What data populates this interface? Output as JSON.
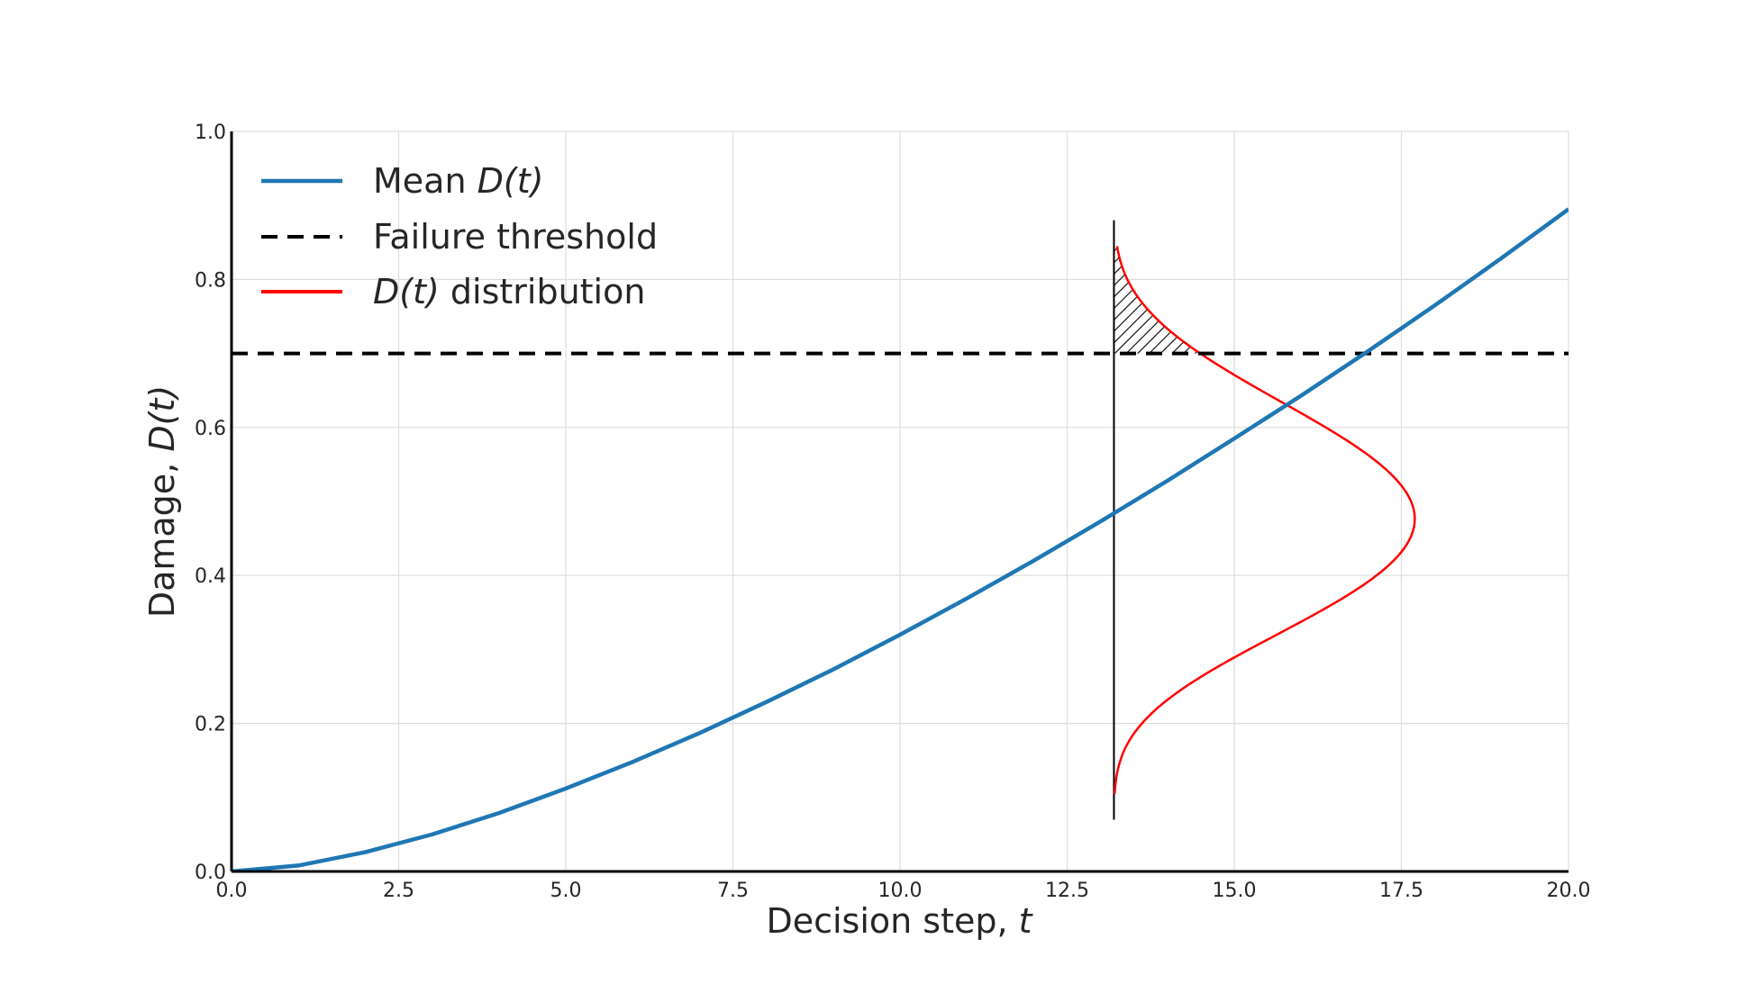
{
  "chart_data": {
    "type": "line",
    "xlabel": {
      "text": "Decision step, ",
      "var": "t"
    },
    "ylabel": {
      "text": "Damage, ",
      "var": "D(t)"
    },
    "xlim": [
      0,
      20
    ],
    "ylim": [
      0,
      1
    ],
    "xticks": [
      0,
      2.5,
      5,
      7.5,
      10,
      12.5,
      15,
      17.5,
      20
    ],
    "xtick_labels": [
      "0.0",
      "2.5",
      "5.0",
      "7.5",
      "10.0",
      "12.5",
      "15.0",
      "17.5",
      "20.0"
    ],
    "yticks": [
      0,
      0.2,
      0.4,
      0.6,
      0.8,
      1.0
    ],
    "ytick_labels": [
      "0.0",
      "0.2",
      "0.4",
      "0.6",
      "0.8",
      "1.0"
    ],
    "grid": true,
    "legend_position": "top-left",
    "series": [
      {
        "name": {
          "prefix": "Mean ",
          "var": "D(t)",
          "suffix": ""
        },
        "style": "solid",
        "color": "#1f77b4",
        "x": [
          0,
          1,
          2,
          3,
          4,
          5,
          6,
          7,
          8,
          9,
          10,
          11,
          12,
          13,
          14,
          15,
          16,
          17,
          18,
          19,
          20
        ],
        "y": [
          0.0,
          0.008,
          0.026,
          0.05,
          0.079,
          0.112,
          0.148,
          0.187,
          0.229,
          0.273,
          0.32,
          0.369,
          0.42,
          0.473,
          0.528,
          0.585,
          0.643,
          0.703,
          0.765,
          0.829,
          0.895
        ]
      },
      {
        "name": {
          "prefix": "",
          "var": "",
          "suffix": "Failure threshold"
        },
        "style": "dashed",
        "color": "#000000",
        "x": [
          0,
          20
        ],
        "y": [
          0.7,
          0.7
        ]
      },
      {
        "name": {
          "prefix": "",
          "var": "D(t)",
          "suffix": " distribution"
        },
        "style": "solid",
        "color": "#ff0000",
        "base_x": 13.2,
        "peak_x": 17.7,
        "mean_y": 0.48,
        "y_range": [
          0.105,
          0.845
        ]
      }
    ],
    "marker_line": {
      "x": 13.2,
      "y": [
        0.07,
        0.88
      ],
      "color": "#000000"
    },
    "hatched_region": {
      "from_y": 0.7,
      "to_y": 0.845,
      "hatch": "diagonal"
    }
  }
}
